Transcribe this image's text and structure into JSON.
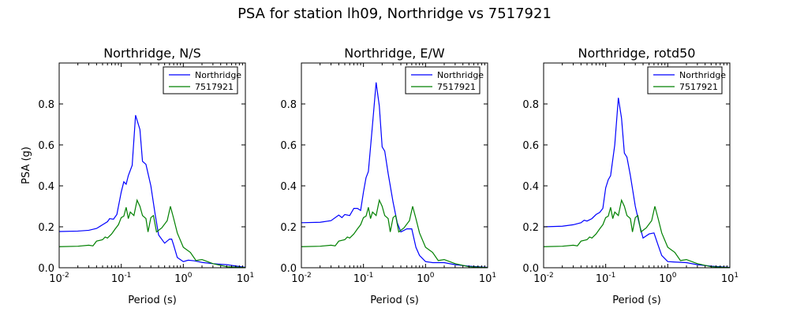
{
  "figure": {
    "title": "PSA for station lh09, Northridge vs 7517921"
  },
  "legend": {
    "placement": "upper-right"
  },
  "chart_data": [
    {
      "type": "line",
      "title": "Northridge, N/S",
      "xlabel": "Period (s)",
      "ylabel": "PSA (g)",
      "xscale": "log",
      "xlim": [
        0.01,
        10
      ],
      "ylim": [
        0,
        1.0
      ],
      "x_tick_labels": [
        "10^-2",
        "10^-1",
        "10^0",
        "10^1"
      ],
      "y_tick_values": [
        0.0,
        0.2,
        0.4,
        0.6,
        0.8
      ],
      "y_tick_labels": [
        "0.0",
        "0.2",
        "0.4",
        "0.6",
        "0.8"
      ],
      "series": [
        {
          "name": "Northridge",
          "color": "#0000ff",
          "points": [
            [
              0.01,
              0.177
            ],
            [
              0.02,
              0.179
            ],
            [
              0.03,
              0.183
            ],
            [
              0.04,
              0.192
            ],
            [
              0.05,
              0.21
            ],
            [
              0.06,
              0.225
            ],
            [
              0.065,
              0.24
            ],
            [
              0.075,
              0.237
            ],
            [
              0.085,
              0.26
            ],
            [
              0.1,
              0.37
            ],
            [
              0.11,
              0.42
            ],
            [
              0.12,
              0.408
            ],
            [
              0.13,
              0.45
            ],
            [
              0.15,
              0.5
            ],
            [
              0.17,
              0.745
            ],
            [
              0.2,
              0.675
            ],
            [
              0.22,
              0.52
            ],
            [
              0.25,
              0.505
            ],
            [
              0.3,
              0.4
            ],
            [
              0.35,
              0.265
            ],
            [
              0.4,
              0.16
            ],
            [
              0.5,
              0.12
            ],
            [
              0.6,
              0.14
            ],
            [
              0.65,
              0.14
            ],
            [
              0.7,
              0.11
            ],
            [
              0.8,
              0.05
            ],
            [
              1.0,
              0.03
            ],
            [
              1.2,
              0.037
            ],
            [
              1.5,
              0.034
            ],
            [
              2,
              0.026
            ],
            [
              3,
              0.02
            ],
            [
              5,
              0.015
            ],
            [
              10,
              0.002
            ]
          ]
        },
        {
          "name": "7517921",
          "color": "#008000",
          "points": [
            [
              0.01,
              0.103
            ],
            [
              0.02,
              0.105
            ],
            [
              0.03,
              0.11
            ],
            [
              0.035,
              0.107
            ],
            [
              0.04,
              0.13
            ],
            [
              0.05,
              0.137
            ],
            [
              0.055,
              0.15
            ],
            [
              0.06,
              0.145
            ],
            [
              0.07,
              0.165
            ],
            [
              0.08,
              0.19
            ],
            [
              0.09,
              0.21
            ],
            [
              0.1,
              0.245
            ],
            [
              0.11,
              0.252
            ],
            [
              0.12,
              0.295
            ],
            [
              0.13,
              0.24
            ],
            [
              0.14,
              0.272
            ],
            [
              0.16,
              0.255
            ],
            [
              0.18,
              0.33
            ],
            [
              0.2,
              0.3
            ],
            [
              0.22,
              0.255
            ],
            [
              0.25,
              0.24
            ],
            [
              0.27,
              0.175
            ],
            [
              0.3,
              0.245
            ],
            [
              0.33,
              0.255
            ],
            [
              0.37,
              0.175
            ],
            [
              0.45,
              0.195
            ],
            [
              0.55,
              0.23
            ],
            [
              0.62,
              0.3
            ],
            [
              0.7,
              0.24
            ],
            [
              0.8,
              0.17
            ],
            [
              1.0,
              0.1
            ],
            [
              1.3,
              0.075
            ],
            [
              1.6,
              0.035
            ],
            [
              2,
              0.04
            ],
            [
              3,
              0.02
            ],
            [
              5,
              0.005
            ],
            [
              10,
              0.001
            ]
          ]
        }
      ]
    },
    {
      "type": "line",
      "title": "Northridge, E/W",
      "xlabel": "Period (s)",
      "ylabel": "",
      "xscale": "log",
      "xlim": [
        0.01,
        10
      ],
      "ylim": [
        0,
        1.0
      ],
      "x_tick_labels": [
        "10^-2",
        "10^-1",
        "10^0",
        "10^1"
      ],
      "y_tick_values": [
        0.0,
        0.2,
        0.4,
        0.6,
        0.8
      ],
      "y_tick_labels": [
        "0.0",
        "0.2",
        "0.4",
        "0.6",
        "0.8"
      ],
      "series": [
        {
          "name": "Northridge",
          "color": "#0000ff",
          "points": [
            [
              0.01,
              0.22
            ],
            [
              0.02,
              0.222
            ],
            [
              0.03,
              0.23
            ],
            [
              0.04,
              0.257
            ],
            [
              0.045,
              0.245
            ],
            [
              0.05,
              0.26
            ],
            [
              0.06,
              0.255
            ],
            [
              0.07,
              0.29
            ],
            [
              0.08,
              0.29
            ],
            [
              0.09,
              0.28
            ],
            [
              0.1,
              0.37
            ],
            [
              0.11,
              0.44
            ],
            [
              0.12,
              0.47
            ],
            [
              0.14,
              0.7
            ],
            [
              0.16,
              0.905
            ],
            [
              0.18,
              0.79
            ],
            [
              0.2,
              0.59
            ],
            [
              0.22,
              0.57
            ],
            [
              0.25,
              0.46
            ],
            [
              0.3,
              0.32
            ],
            [
              0.35,
              0.22
            ],
            [
              0.4,
              0.175
            ],
            [
              0.5,
              0.19
            ],
            [
              0.6,
              0.19
            ],
            [
              0.7,
              0.1
            ],
            [
              0.8,
              0.06
            ],
            [
              1.0,
              0.03
            ],
            [
              1.3,
              0.025
            ],
            [
              2,
              0.025
            ],
            [
              3,
              0.015
            ],
            [
              5,
              0.008
            ],
            [
              10,
              0.002
            ]
          ]
        },
        {
          "name": "7517921",
          "color": "#008000",
          "points": [
            [
              0.01,
              0.103
            ],
            [
              0.02,
              0.105
            ],
            [
              0.03,
              0.11
            ],
            [
              0.035,
              0.107
            ],
            [
              0.04,
              0.13
            ],
            [
              0.05,
              0.137
            ],
            [
              0.055,
              0.15
            ],
            [
              0.06,
              0.145
            ],
            [
              0.07,
              0.165
            ],
            [
              0.08,
              0.19
            ],
            [
              0.09,
              0.21
            ],
            [
              0.1,
              0.245
            ],
            [
              0.11,
              0.252
            ],
            [
              0.12,
              0.295
            ],
            [
              0.13,
              0.24
            ],
            [
              0.14,
              0.272
            ],
            [
              0.16,
              0.255
            ],
            [
              0.18,
              0.33
            ],
            [
              0.2,
              0.3
            ],
            [
              0.22,
              0.255
            ],
            [
              0.25,
              0.24
            ],
            [
              0.27,
              0.175
            ],
            [
              0.3,
              0.245
            ],
            [
              0.33,
              0.255
            ],
            [
              0.37,
              0.175
            ],
            [
              0.45,
              0.195
            ],
            [
              0.55,
              0.23
            ],
            [
              0.62,
              0.3
            ],
            [
              0.7,
              0.24
            ],
            [
              0.8,
              0.17
            ],
            [
              1.0,
              0.1
            ],
            [
              1.3,
              0.075
            ],
            [
              1.6,
              0.035
            ],
            [
              2,
              0.04
            ],
            [
              3,
              0.02
            ],
            [
              5,
              0.005
            ],
            [
              10,
              0.001
            ]
          ]
        }
      ]
    },
    {
      "type": "line",
      "title": "Northridge, rotd50",
      "xlabel": "Period (s)",
      "ylabel": "",
      "xscale": "log",
      "xlim": [
        0.01,
        10
      ],
      "ylim": [
        0,
        1.0
      ],
      "x_tick_labels": [
        "10^-2",
        "10^-1",
        "10^0",
        "10^1"
      ],
      "y_tick_values": [
        0.0,
        0.2,
        0.4,
        0.6,
        0.8
      ],
      "y_tick_labels": [
        "0.0",
        "0.2",
        "0.4",
        "0.6",
        "0.8"
      ],
      "series": [
        {
          "name": "Northridge",
          "color": "#0000ff",
          "points": [
            [
              0.01,
              0.2
            ],
            [
              0.02,
              0.203
            ],
            [
              0.03,
              0.21
            ],
            [
              0.04,
              0.22
            ],
            [
              0.045,
              0.232
            ],
            [
              0.05,
              0.228
            ],
            [
              0.06,
              0.24
            ],
            [
              0.07,
              0.26
            ],
            [
              0.08,
              0.27
            ],
            [
              0.09,
              0.29
            ],
            [
              0.1,
              0.39
            ],
            [
              0.11,
              0.43
            ],
            [
              0.12,
              0.45
            ],
            [
              0.14,
              0.6
            ],
            [
              0.16,
              0.83
            ],
            [
              0.18,
              0.73
            ],
            [
              0.2,
              0.56
            ],
            [
              0.22,
              0.54
            ],
            [
              0.25,
              0.45
            ],
            [
              0.3,
              0.3
            ],
            [
              0.35,
              0.21
            ],
            [
              0.4,
              0.145
            ],
            [
              0.5,
              0.165
            ],
            [
              0.6,
              0.17
            ],
            [
              0.7,
              0.11
            ],
            [
              0.8,
              0.06
            ],
            [
              1.0,
              0.03
            ],
            [
              1.3,
              0.028
            ],
            [
              2,
              0.025
            ],
            [
              3,
              0.015
            ],
            [
              5,
              0.008
            ],
            [
              10,
              0.002
            ]
          ]
        },
        {
          "name": "7517921",
          "color": "#008000",
          "points": [
            [
              0.01,
              0.103
            ],
            [
              0.02,
              0.105
            ],
            [
              0.03,
              0.11
            ],
            [
              0.035,
              0.107
            ],
            [
              0.04,
              0.13
            ],
            [
              0.05,
              0.137
            ],
            [
              0.055,
              0.15
            ],
            [
              0.06,
              0.145
            ],
            [
              0.07,
              0.165
            ],
            [
              0.08,
              0.19
            ],
            [
              0.09,
              0.21
            ],
            [
              0.1,
              0.245
            ],
            [
              0.11,
              0.252
            ],
            [
              0.12,
              0.295
            ],
            [
              0.13,
              0.24
            ],
            [
              0.14,
              0.272
            ],
            [
              0.16,
              0.255
            ],
            [
              0.18,
              0.33
            ],
            [
              0.2,
              0.3
            ],
            [
              0.22,
              0.255
            ],
            [
              0.25,
              0.24
            ],
            [
              0.27,
              0.175
            ],
            [
              0.3,
              0.245
            ],
            [
              0.33,
              0.255
            ],
            [
              0.37,
              0.175
            ],
            [
              0.45,
              0.195
            ],
            [
              0.55,
              0.23
            ],
            [
              0.62,
              0.3
            ],
            [
              0.7,
              0.24
            ],
            [
              0.8,
              0.17
            ],
            [
              1.0,
              0.1
            ],
            [
              1.3,
              0.075
            ],
            [
              1.6,
              0.035
            ],
            [
              2,
              0.04
            ],
            [
              3,
              0.02
            ],
            [
              5,
              0.005
            ],
            [
              10,
              0.001
            ]
          ]
        }
      ]
    }
  ]
}
